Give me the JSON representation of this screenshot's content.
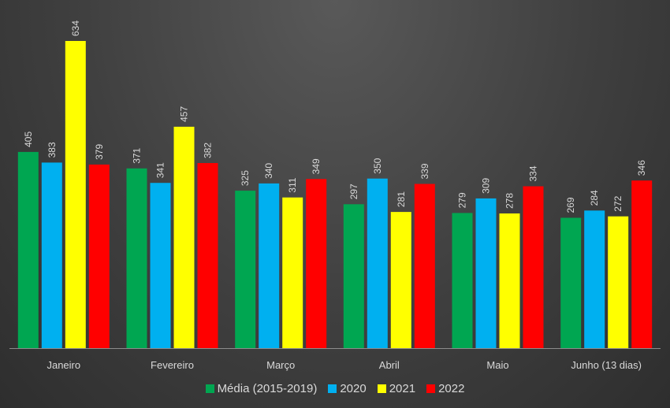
{
  "chart_data": {
    "type": "bar",
    "title": "",
    "xlabel": "",
    "ylabel": "",
    "ylim": [
      0,
      640
    ],
    "grid": false,
    "legend_position": "bottom",
    "categories": [
      "Janeiro",
      "Fevereiro",
      "Março",
      "Abril",
      "Maio",
      "Junho (13 dias)"
    ],
    "series": [
      {
        "name": "Média (2015-2019)",
        "color": "#00a651",
        "values": [
          405,
          371,
          325,
          297,
          279,
          269
        ]
      },
      {
        "name": "2020",
        "color": "#00b0f0",
        "values": [
          383,
          341,
          340,
          350,
          309,
          284
        ]
      },
      {
        "name": "2021",
        "color": "#ffff00",
        "values": [
          634,
          457,
          311,
          281,
          278,
          272
        ]
      },
      {
        "name": "2022",
        "color": "#ff0000",
        "values": [
          379,
          382,
          349,
          339,
          334,
          346
        ]
      }
    ]
  }
}
